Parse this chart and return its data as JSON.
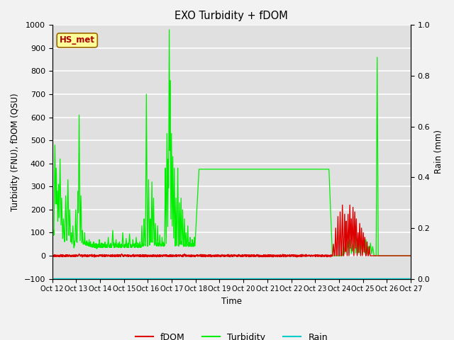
{
  "title": "EXO Turbidity + fDOM",
  "xlabel": "Time",
  "ylabel_left": "Turbidity (FNU), fDOM (QSU)",
  "ylabel_right": "Rain (mm)",
  "ylim_left": [
    -100,
    1000
  ],
  "ylim_right": [
    0.0,
    1.0
  ],
  "yticks_left": [
    -100,
    0,
    100,
    200,
    300,
    400,
    500,
    600,
    700,
    800,
    900,
    1000
  ],
  "yticks_right": [
    0.0,
    0.2,
    0.4,
    0.6,
    0.8,
    1.0
  ],
  "xtick_labels": [
    "Oct 12",
    "Oct 13",
    "Oct 14",
    "Oct 15",
    "Oct 16",
    "Oct 17",
    "Oct 18",
    "Oct 19",
    "Oct 20",
    "Oct 21",
    "Oct 22",
    "Oct 23",
    "Oct 24",
    "Oct 25",
    "Oct 26",
    "Oct 27"
  ],
  "background_color": "#e0e0e0",
  "grid_color": "#ffffff",
  "annotation_text": "HS_met",
  "annotation_color": "#aa0000",
  "annotation_bg": "#ffff99",
  "annotation_edge": "#996600",
  "fdom_color": "#dd0000",
  "turbidity_color": "#00ee00",
  "rain_color": "#00cccc",
  "legend_fdom": "fDOM",
  "legend_turbidity": "Turbidity",
  "legend_rain": "Rain"
}
